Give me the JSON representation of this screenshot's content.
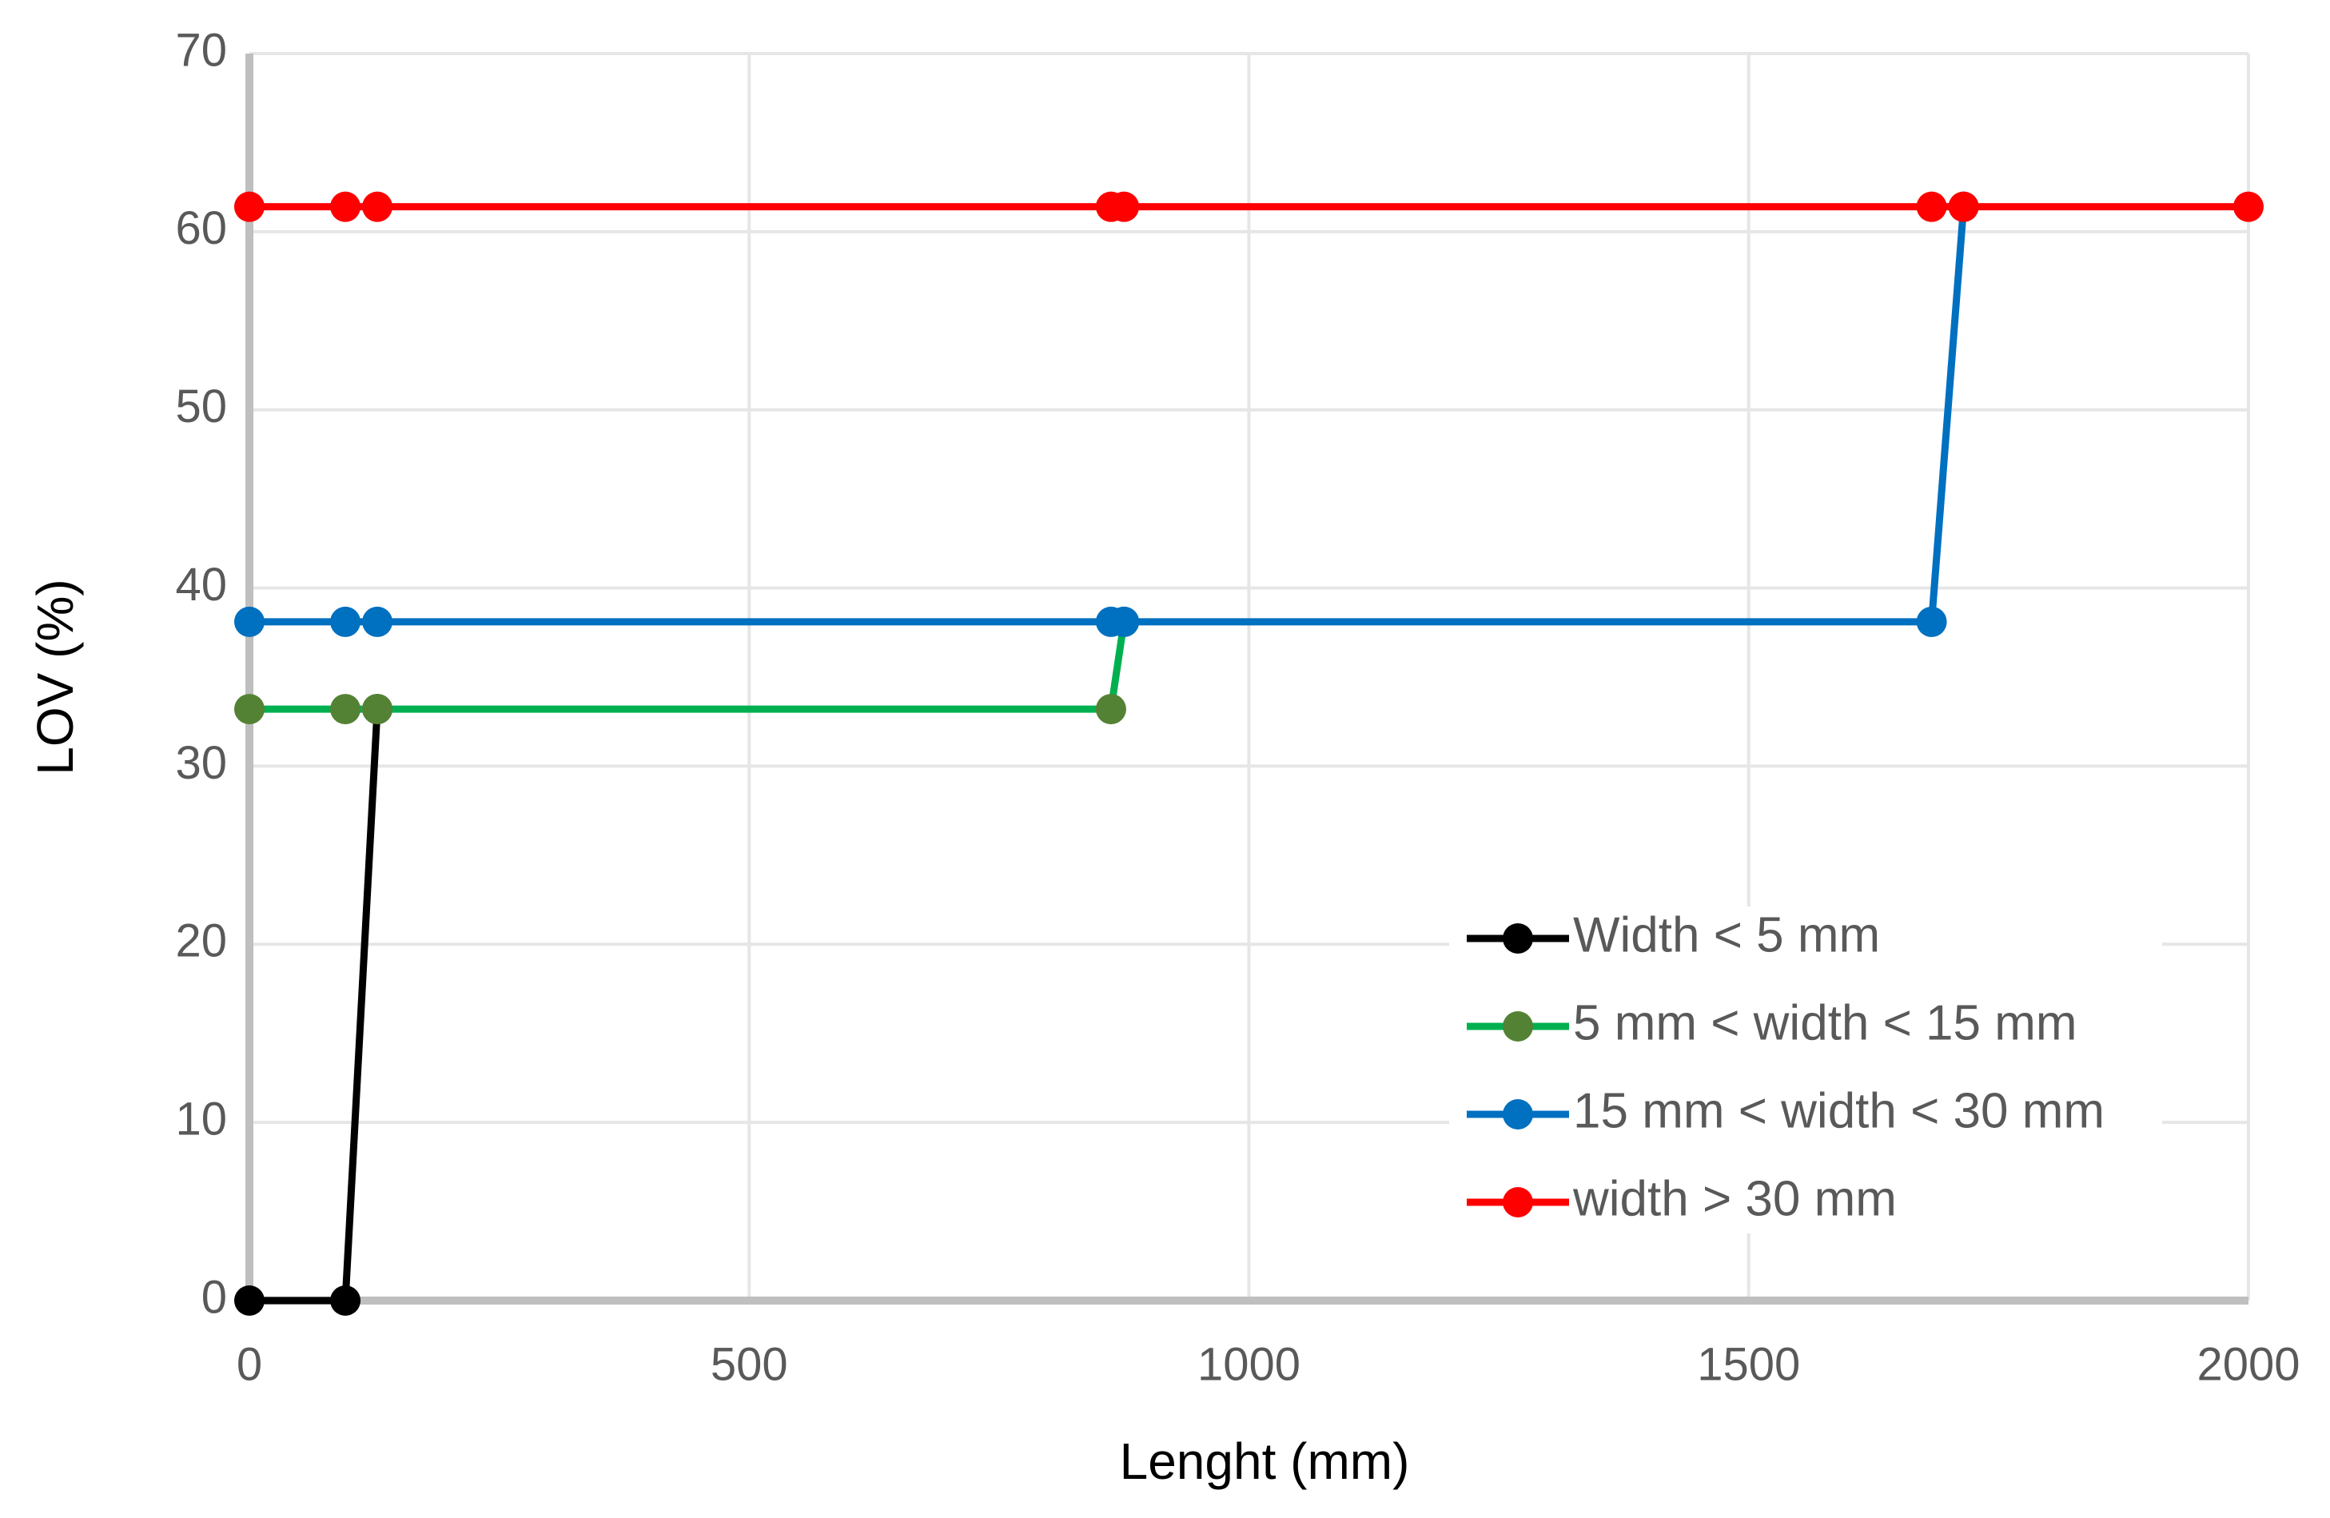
{
  "chart_data": {
    "type": "line",
    "x_label": "Lenght  (mm)",
    "y_label": "LOV  (%)",
    "xlim": [
      0,
      2000
    ],
    "xticks": [
      0,
      500,
      1000,
      1500,
      2000
    ],
    "ylim": [
      0,
      70
    ],
    "yticks": [
      0,
      10,
      20,
      30,
      40,
      50,
      60,
      70
    ],
    "grid": true,
    "legend": "lower right",
    "series": [
      {
        "name": "Width < 5 mm",
        "color": "#000000",
        "marker_color": "#000000",
        "x": [
          0,
          96,
          128
        ],
        "values": [
          0,
          0,
          33.2
        ]
      },
      {
        "name": "5 mm < width < 15 mm",
        "color": "#00b050",
        "marker_color": "#548235",
        "x": [
          0,
          96,
          128,
          862,
          875
        ],
        "values": [
          33.2,
          33.2,
          33.2,
          33.2,
          38.1
        ]
      },
      {
        "name": "15 mm < width < 30 mm",
        "color": "#0070c0",
        "marker_color": "#0070c0",
        "x": [
          0,
          96,
          128,
          862,
          875,
          1683,
          1715
        ],
        "values": [
          38.1,
          38.1,
          38.1,
          38.1,
          38.1,
          38.1,
          61.4
        ]
      },
      {
        "name": "width > 30 mm",
        "color": "#ff0000",
        "marker_color": "#ff0000",
        "x": [
          0,
          96,
          128,
          862,
          875,
          1683,
          1715,
          2000
        ],
        "values": [
          61.4,
          61.4,
          61.4,
          61.4,
          61.4,
          61.4,
          61.4,
          61.4
        ]
      }
    ]
  }
}
